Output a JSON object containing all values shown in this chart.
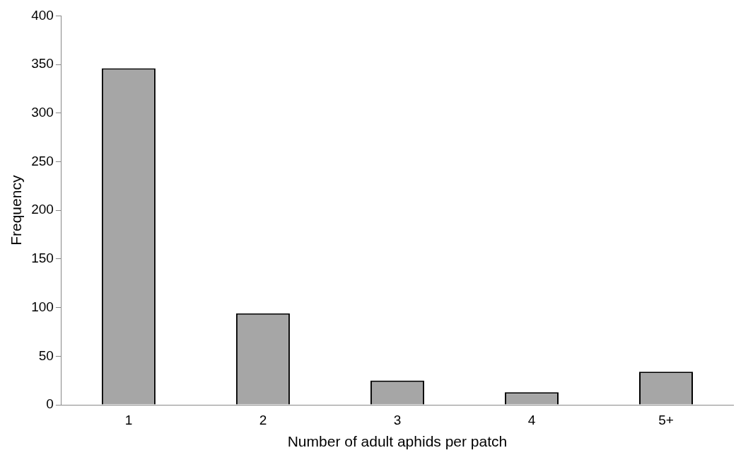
{
  "chart_data": {
    "type": "bar",
    "xlabel": "Number of adult aphids per patch",
    "ylabel": "Frequency",
    "categories": [
      "1",
      "2",
      "3",
      "4",
      "5+"
    ],
    "values": [
      346,
      94,
      25,
      13,
      34
    ],
    "color": "#a6a6a6",
    "ylim": [
      0,
      400
    ],
    "yticks": [
      0,
      50,
      100,
      150,
      200,
      250,
      300,
      350,
      400
    ],
    "grid": false,
    "legend": false
  }
}
